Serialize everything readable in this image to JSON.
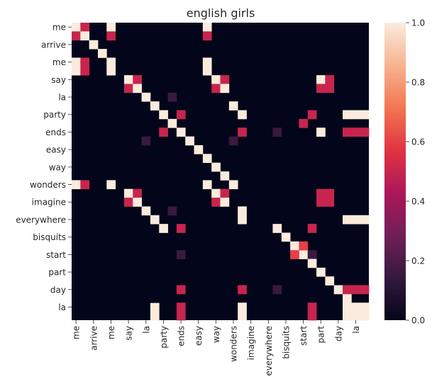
{
  "chart_data": {
    "type": "heatmap",
    "title": "english girls",
    "xlabel": "",
    "ylabel": "",
    "x_tick_labels": [
      "me",
      "arrive",
      "me",
      "say",
      "la",
      "party",
      "ends",
      "easy",
      "way",
      "wonders",
      "imagine",
      "everywhere",
      "bisquits",
      "start",
      "part",
      "day",
      "la"
    ],
    "y_tick_labels": [
      "me",
      "arrive",
      "me",
      "say",
      "la",
      "party",
      "ends",
      "easy",
      "way",
      "wonders",
      "imagine",
      "everywhere",
      "bisquits",
      "start",
      "part",
      "day",
      "la"
    ],
    "grid_size": 34,
    "tick_every": 2,
    "colorbar": {
      "vmin": 0.0,
      "vmax": 1.0,
      "ticks": [
        "0.0",
        "0.2",
        "0.4",
        "0.6",
        "0.8",
        "1.0"
      ],
      "colormap": "rocket",
      "stops": [
        "#03051a",
        "#36193e",
        "#701f57",
        "#ad1759",
        "#e13342",
        "#f37651",
        "#f6b48f",
        "#faebdd"
      ]
    },
    "cells": [
      [
        0,
        0,
        1.0
      ],
      [
        0,
        1,
        0.5
      ],
      [
        0,
        4,
        1.0
      ],
      [
        0,
        15,
        1.0
      ],
      [
        1,
        0,
        0.5
      ],
      [
        1,
        1,
        1.0
      ],
      [
        1,
        4,
        0.5
      ],
      [
        1,
        15,
        0.5
      ],
      [
        2,
        2,
        1.0
      ],
      [
        3,
        3,
        1.0
      ],
      [
        4,
        0,
        1.0
      ],
      [
        4,
        1,
        0.5
      ],
      [
        4,
        4,
        1.0
      ],
      [
        4,
        15,
        1.0
      ],
      [
        5,
        0,
        1.0
      ],
      [
        5,
        1,
        0.5
      ],
      [
        5,
        4,
        1.0
      ],
      [
        5,
        15,
        1.0
      ],
      [
        6,
        6,
        1.0
      ],
      [
        6,
        7,
        0.5
      ],
      [
        6,
        16,
        1.0
      ],
      [
        6,
        17,
        0.5
      ],
      [
        6,
        28,
        1.0
      ],
      [
        6,
        29,
        0.5
      ],
      [
        7,
        6,
        0.5
      ],
      [
        7,
        7,
        1.0
      ],
      [
        7,
        16,
        0.5
      ],
      [
        7,
        17,
        1.0
      ],
      [
        7,
        28,
        0.5
      ],
      [
        7,
        29,
        0.5
      ],
      [
        8,
        8,
        1.0
      ],
      [
        8,
        11,
        0.15
      ],
      [
        9,
        9,
        1.0
      ],
      [
        9,
        18,
        1.0
      ],
      [
        10,
        10,
        1.0
      ],
      [
        10,
        12,
        0.5
      ],
      [
        10,
        19,
        1.0
      ],
      [
        10,
        27,
        0.5
      ],
      [
        10,
        31,
        1.0
      ],
      [
        10,
        32,
        1.0
      ],
      [
        10,
        33,
        1.0
      ],
      [
        11,
        11,
        1.0
      ],
      [
        11,
        26,
        0.5
      ],
      [
        12,
        10,
        0.5
      ],
      [
        12,
        12,
        1.0
      ],
      [
        12,
        19,
        0.5
      ],
      [
        12,
        23,
        0.15
      ],
      [
        12,
        28,
        1.0
      ],
      [
        12,
        31,
        0.5
      ],
      [
        12,
        32,
        0.5
      ],
      [
        12,
        33,
        0.5
      ],
      [
        13,
        8,
        0.15
      ],
      [
        13,
        13,
        1.0
      ],
      [
        13,
        18,
        0.15
      ],
      [
        14,
        14,
        1.0
      ],
      [
        15,
        15,
        1.0
      ],
      [
        16,
        16,
        1.0
      ],
      [
        17,
        17,
        1.0
      ],
      [
        18,
        0,
        1.0
      ],
      [
        18,
        1,
        0.5
      ],
      [
        18,
        4,
        1.0
      ],
      [
        18,
        15,
        1.0
      ],
      [
        18,
        18,
        1.0
      ],
      [
        19,
        6,
        1.0
      ],
      [
        19,
        7,
        0.5
      ],
      [
        19,
        16,
        1.0
      ],
      [
        19,
        17,
        0.5
      ],
      [
        19,
        28,
        0.5
      ],
      [
        19,
        29,
        0.5
      ],
      [
        20,
        6,
        0.5
      ],
      [
        20,
        7,
        1.0
      ],
      [
        20,
        16,
        0.5
      ],
      [
        20,
        17,
        1.0
      ],
      [
        20,
        28,
        0.5
      ],
      [
        20,
        29,
        0.5
      ],
      [
        21,
        8,
        1.0
      ],
      [
        21,
        11,
        0.15
      ],
      [
        21,
        19,
        1.0
      ],
      [
        22,
        9,
        1.0
      ],
      [
        22,
        19,
        1.0
      ],
      [
        22,
        31,
        1.0
      ],
      [
        22,
        32,
        1.0
      ],
      [
        22,
        33,
        1.0
      ],
      [
        23,
        10,
        1.0
      ],
      [
        23,
        12,
        0.5
      ],
      [
        23,
        23,
        1.0
      ],
      [
        23,
        27,
        0.5
      ],
      [
        24,
        24,
        1.0
      ],
      [
        25,
        25,
        1.0
      ],
      [
        26,
        26,
        1.0
      ],
      [
        26,
        12,
        0.15
      ],
      [
        26,
        27,
        0.15
      ],
      [
        27,
        27,
        1.0
      ],
      [
        28,
        28,
        1.0
      ],
      [
        29,
        29,
        1.0
      ],
      [
        30,
        30,
        1.0
      ],
      [
        31,
        31,
        1.0
      ],
      [
        32,
        32,
        1.0
      ],
      [
        33,
        33,
        1.0
      ],
      [
        25,
        26,
        0.6
      ],
      [
        26,
        25,
        0.6
      ],
      [
        30,
        12,
        0.5
      ],
      [
        30,
        19,
        0.5
      ],
      [
        30,
        23,
        0.15
      ],
      [
        30,
        31,
        0.5
      ],
      [
        30,
        32,
        0.5
      ],
      [
        30,
        33,
        0.5
      ],
      [
        31,
        31,
        1.0
      ],
      [
        32,
        9,
        1.0
      ],
      [
        32,
        12,
        0.5
      ],
      [
        32,
        19,
        1.0
      ],
      [
        32,
        27,
        0.5
      ],
      [
        32,
        31,
        1.0
      ],
      [
        32,
        32,
        1.0
      ],
      [
        32,
        33,
        1.0
      ],
      [
        33,
        9,
        1.0
      ],
      [
        33,
        12,
        0.5
      ],
      [
        33,
        19,
        1.0
      ],
      [
        33,
        27,
        0.5
      ],
      [
        33,
        31,
        1.0
      ],
      [
        33,
        32,
        1.0
      ],
      [
        33,
        33,
        1.0
      ],
      [
        31,
        9,
        0.0
      ]
    ]
  }
}
